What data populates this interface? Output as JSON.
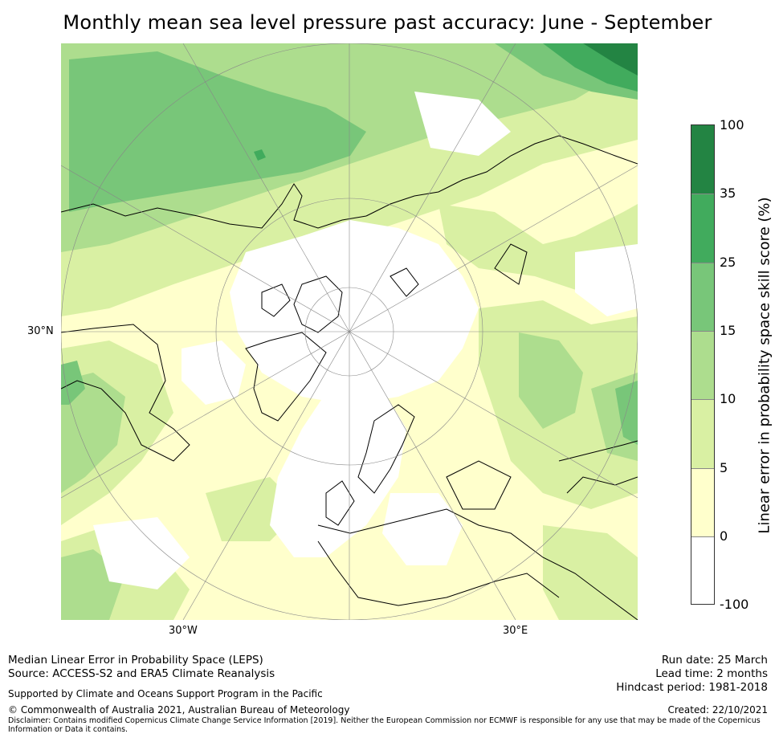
{
  "title": "Monthly mean sea level pressure past accuracy: June - September",
  "map": {
    "labels": {
      "lat_30n": "30°N",
      "lon_30w": "30°W",
      "lon_30e": "30°E"
    },
    "colors": {
      "below_0": "#ffffff",
      "c0_5": "#ffffcc",
      "c5_10": "#d9f0a3",
      "c10_15": "#addd8e",
      "c15_25": "#78c679",
      "c25_35": "#41ab5d",
      "c35_100": "#238443",
      "coast": "#000000",
      "grid": "#888888"
    }
  },
  "colorbar": {
    "title": "Linear error in probability space skill score (%)",
    "ticks": [
      "100",
      "35",
      "25",
      "15",
      "10",
      "5",
      "0",
      "-100"
    ],
    "segments": [
      {
        "range": "35 – 100",
        "color": "#238443"
      },
      {
        "range": "25 – 35",
        "color": "#41ab5d"
      },
      {
        "range": "15 – 25",
        "color": "#78c679"
      },
      {
        "range": "10 – 15",
        "color": "#addd8e"
      },
      {
        "range": "5 – 10",
        "color": "#d9f0a3"
      },
      {
        "range": "0 – 5",
        "color": "#ffffcc"
      },
      {
        "range": "-100 – 0",
        "color": "#ffffff"
      }
    ]
  },
  "footer": {
    "line1": "Median Linear Error in Probability Space (LEPS)",
    "line2": "Source: ACCESS-S2 and ERA5 Climate Reanalysis",
    "support": "Supported by Climate and Oceans Support Program in the Pacific",
    "copyright": "© Commonwealth of Australia 2021, Australian Bureau of Meteorology",
    "disclaimer1": "Disclaimer: Contains modified Copernicus Climate Change Service Information [2019]. Neither the European Commission nor ECMWF is responsible for any use that may be made of the Copernicus",
    "disclaimer2": "Information or Data it contains.",
    "run_date": "Run date: 25 March",
    "lead_time": "Lead time: 2 months",
    "hindcast": "Hindcast period: 1981-2018",
    "created": "Created: 22/10/2021"
  }
}
